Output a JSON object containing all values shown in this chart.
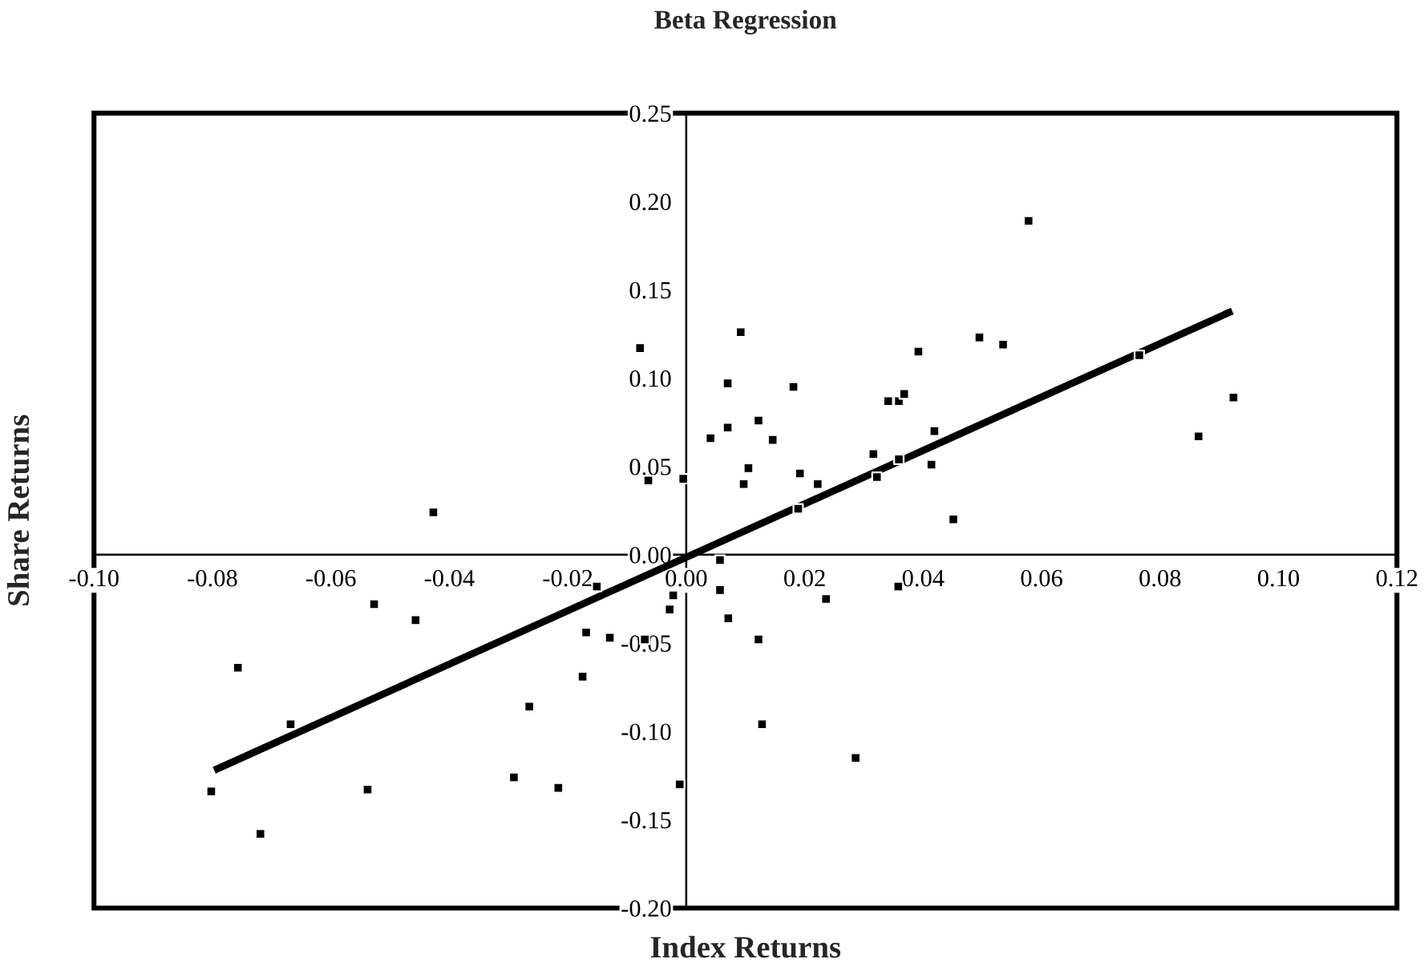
{
  "chart_data": {
    "type": "scatter",
    "title": "Beta Regression",
    "xlabel": "Index Returns",
    "ylabel": "Share Returns",
    "xlim": [
      -0.1,
      0.12
    ],
    "ylim": [
      -0.2,
      0.25
    ],
    "xticks": [
      {
        "value": -0.1,
        "label": "-0.10"
      },
      {
        "value": -0.08,
        "label": "-0.08"
      },
      {
        "value": -0.06,
        "label": "-0.06"
      },
      {
        "value": -0.04,
        "label": "-0.04"
      },
      {
        "value": -0.02,
        "label": "-0.02"
      },
      {
        "value": 0,
        "label": "0.00"
      },
      {
        "value": 0.02,
        "label": "0.02"
      },
      {
        "value": 0.04,
        "label": "0.04"
      },
      {
        "value": 0.06,
        "label": "0.06"
      },
      {
        "value": 0.08,
        "label": "0.08"
      },
      {
        "value": 0.1,
        "label": "0.10"
      },
      {
        "value": 0.12,
        "label": "0.12"
      }
    ],
    "yticks": [
      {
        "value": -0.2,
        "label": "-0.20"
      },
      {
        "value": -0.15,
        "label": "-0.15"
      },
      {
        "value": -0.1,
        "label": "-0.10"
      },
      {
        "value": -0.05,
        "label": "-0.05"
      },
      {
        "value": 0,
        "label": "0.00"
      },
      {
        "value": 0.05,
        "label": "0.05"
      },
      {
        "value": 0.1,
        "label": "0.10"
      },
      {
        "value": 0.15,
        "label": "0.15"
      },
      {
        "value": 0.2,
        "label": "0.20"
      },
      {
        "value": 0.25,
        "label": "0.25"
      }
    ],
    "grid": false,
    "legend": false,
    "marker": "square",
    "series": [
      {
        "color": "#000000",
        "x": [
          -0.0427,
          -0.0078,
          -0.0064,
          -0.0005,
          0.0092,
          0.007,
          0.0041,
          0.007,
          0.0122,
          0.0105,
          0.0097,
          0.0057,
          0.0146,
          0.0181,
          0.0192,
          0.0222,
          0.0189,
          0.0316,
          0.0322,
          0.0341,
          0.0359,
          0.0368,
          0.0359,
          0.0392,
          0.0419,
          0.0414,
          0.0451,
          0.0495,
          0.0535,
          0.0578,
          0.0765,
          0.0865,
          0.0924,
          -0.0527,
          -0.0457,
          -0.0757,
          -0.0668,
          -0.0802,
          -0.0719,
          -0.0538,
          -0.0291,
          -0.0265,
          -0.0216,
          -0.0175,
          -0.0169,
          -0.0151,
          -0.0129,
          -0.007,
          -0.0028,
          -0.0022,
          -0.0011,
          0.0057,
          0.0071,
          0.0122,
          0.0128,
          0.0236,
          0.0358,
          0.0286
        ],
        "values": [
          0.024,
          0.117,
          0.042,
          0.043,
          0.126,
          0.097,
          0.066,
          0.072,
          0.076,
          0.049,
          0.04,
          -0.003,
          0.065,
          0.095,
          0.046,
          0.04,
          0.026,
          0.057,
          0.044,
          0.087,
          0.087,
          0.091,
          0.054,
          0.115,
          0.07,
          0.051,
          0.02,
          0.123,
          0.119,
          0.189,
          0.113,
          0.067,
          0.089,
          -0.028,
          -0.037,
          -0.064,
          -0.096,
          -0.134,
          -0.158,
          -0.133,
          -0.126,
          -0.086,
          -0.132,
          -0.069,
          -0.044,
          -0.018,
          -0.047,
          -0.048,
          -0.031,
          -0.023,
          -0.13,
          -0.02,
          -0.036,
          -0.048,
          -0.096,
          -0.025,
          -0.018,
          -0.115
        ]
      },
      {
        "type": "line",
        "color": "#000000",
        "marker": "none",
        "line_style": "solid",
        "x": [
          -0.0797,
          0.0922
        ],
        "values": [
          -0.122,
          0.138
        ]
      }
    ]
  }
}
